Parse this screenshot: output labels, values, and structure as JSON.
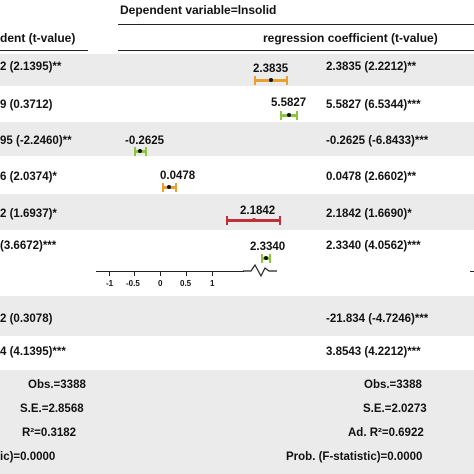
{
  "header": {
    "dep_var": "Dependent variable=lnsolid",
    "left_col": "dent (t-value)",
    "right_col": "regression coefficient (t-value)"
  },
  "rows": [
    {
      "left": "2 (2.1395)**",
      "marker_value": "2.3835",
      "right": "2.3835 (2.2212)**",
      "marker_color": "#e8a030"
    },
    {
      "left": "9 (0.3712)",
      "marker_value": "5.5827",
      "right": "5.5827 (6.5344)***",
      "marker_color": "#8cc63f"
    },
    {
      "left": "95 (-2.2460)**",
      "marker_value": "-0.2625",
      "right": "-0.2625 (-6.8433)***",
      "marker_color": "#8cc63f"
    },
    {
      "left": "6 (2.0374)*",
      "marker_value": "0.0478",
      "right": "0.0478 (2.6602)**",
      "marker_color": "#e8a030"
    },
    {
      "left": "2 (1.6937)*",
      "marker_value": "2.1842",
      "right": "2.1842 (1.6690)*",
      "marker_color": "#c0303a"
    },
    {
      "left": "(3.6672)***",
      "marker_value": "2.3340",
      "right": "2.3340 (4.0562)***",
      "marker_color": "#8cc63f"
    },
    {
      "left": "2 (0.3078)",
      "marker_value": "",
      "right": "-21.834 (-4.7246)***",
      "marker_color": ""
    },
    {
      "left": "4 (4.1395)***",
      "marker_value": "",
      "right": "3.8543 (4.2212)***",
      "marker_color": ""
    }
  ],
  "axis": {
    "ticks": [
      "-1",
      "-0.5",
      "0",
      "0.5",
      "1"
    ]
  },
  "stats": {
    "left": [
      "Obs.=3388",
      "S.E.=2.8568",
      "R²=0.3182",
      "ic)=0.0000"
    ],
    "right": [
      "Obs.=3388",
      "S.E.=2.0273",
      "Ad. R²=0.6922",
      "Prob. (F-statistic)=0.0000"
    ]
  }
}
